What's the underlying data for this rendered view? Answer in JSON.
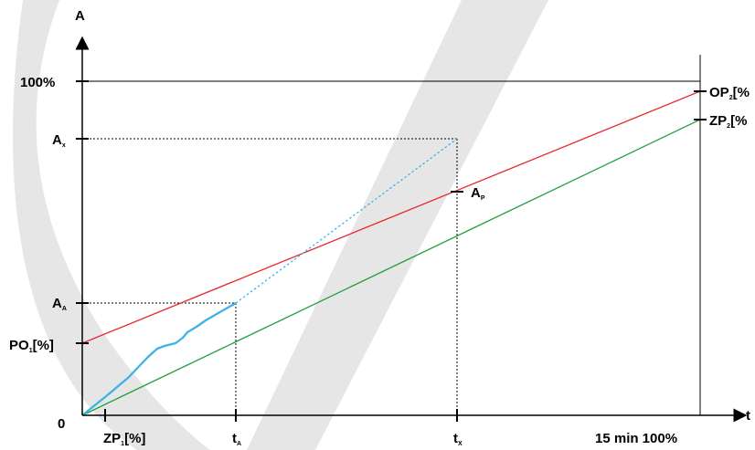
{
  "axes": {
    "y_label": "A",
    "x_label": "t",
    "origin_label": "0"
  },
  "y_axis_labels": {
    "top": "100%",
    "ax_main": "A",
    "ax_sub": "x",
    "aa_main": "A",
    "aa_sub": "A",
    "po1_main": "PO",
    "po1_sub": "1",
    "po1_suffix": "[%]"
  },
  "x_axis_labels": {
    "zp1_main": "ZP",
    "zp1_sub": "1",
    "zp1_suffix": "[%]",
    "ta_main": "t",
    "ta_sub": "A",
    "tx_main": "t",
    "tx_sub": "X",
    "end": "15 min 100%"
  },
  "right_labels": {
    "op2_main": "OP",
    "op2_sub": "2",
    "op2_suffix": "[%",
    "zp2_main": "ZP",
    "zp2_sub": "2",
    "zp2_suffix": "[%"
  },
  "point_labels": {
    "ap_main": "A",
    "ap_sub": "P"
  },
  "colors": {
    "red_line": "#e8262a",
    "green_line": "#1e9e3a",
    "blue_line": "#3ab4e8",
    "watermark": "#e6e6e6"
  }
}
